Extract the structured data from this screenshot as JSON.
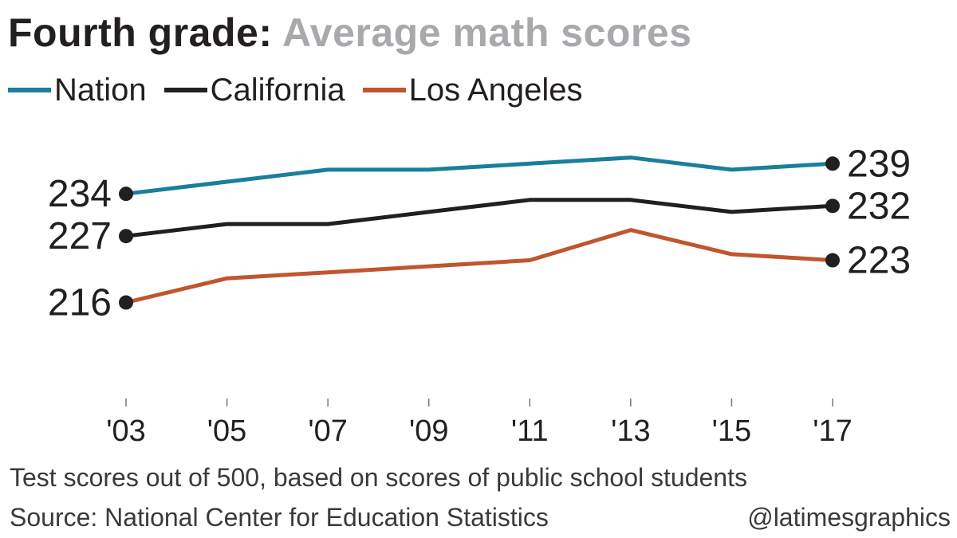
{
  "header": {
    "title": "Fourth grade:",
    "subtitle": "Average math scores"
  },
  "chart_data": {
    "type": "line",
    "x": [
      "'03",
      "'05",
      "'07",
      "'09",
      "'11",
      "'13",
      "'15",
      "'17"
    ],
    "ylim": [
      210,
      243
    ],
    "grid": false,
    "legend_position": "top-left",
    "series": [
      {
        "name": "Nation",
        "color": "#1a7f9a",
        "values": [
          234,
          236,
          238,
          238,
          239,
          240,
          238,
          239
        ],
        "start_label": "234",
        "end_label": "239"
      },
      {
        "name": "California",
        "color": "#231f20",
        "values": [
          227,
          229,
          229,
          231,
          233,
          233,
          231,
          232
        ],
        "start_label": "227",
        "end_label": "232"
      },
      {
        "name": "Los Angeles",
        "color": "#c0562e",
        "values": [
          216,
          220,
          221,
          222,
          223,
          228,
          224,
          223
        ],
        "start_label": "216",
        "end_label": "223"
      }
    ]
  },
  "footer": {
    "note": "Test scores out of 500, based on scores of public school students",
    "source": "Source: National Center for Education Statistics",
    "credit": "@latimesgraphics"
  }
}
